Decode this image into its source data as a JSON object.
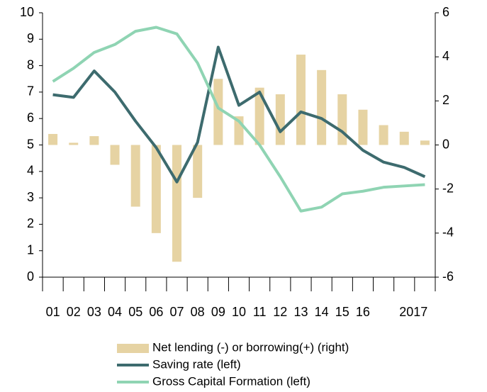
{
  "chart_data": {
    "type": "bar_line",
    "categories": [
      "01",
      "02",
      "03",
      "04",
      "05",
      "06",
      "07",
      "08",
      "09",
      "10",
      "11",
      "12",
      "13",
      "14",
      "15",
      "16",
      null,
      "2017",
      null
    ],
    "ylim": [
      0,
      10
    ],
    "yticks": [
      0,
      1,
      2,
      3,
      4,
      5,
      6,
      7,
      8,
      9,
      10
    ],
    "y2lim": [
      -6,
      6
    ],
    "y2ticks": [
      -6,
      -4,
      -2,
      0,
      2,
      4,
      6
    ],
    "series": [
      {
        "name": "Net lending (-) or borrowing(+) (right)",
        "type": "bar",
        "axis": "y2",
        "color": "#e6d3a3",
        "values": [
          0.5,
          0.1,
          0.4,
          -0.9,
          -2.8,
          -4.0,
          -5.3,
          -2.4,
          3.0,
          1.3,
          2.6,
          2.3,
          4.1,
          3.4,
          2.3,
          1.6,
          0.9,
          0.6,
          0.2
        ]
      },
      {
        "name": "Saving rate (left)",
        "type": "line",
        "color": "#3d6b6e",
        "values": [
          6.9,
          6.8,
          7.8,
          7.0,
          5.9,
          4.9,
          3.6,
          5.1,
          8.7,
          6.5,
          7.0,
          5.5,
          6.25,
          6.0,
          5.5,
          4.8,
          4.35,
          4.15,
          3.8
        ]
      },
      {
        "name": "Gross Capital Formation (left)",
        "type": "line",
        "color": "#8fd4b3",
        "values": [
          7.4,
          7.9,
          8.5,
          8.8,
          9.3,
          9.45,
          9.2,
          8.1,
          6.4,
          5.9,
          5.0,
          3.8,
          2.5,
          2.65,
          3.15,
          3.25,
          3.4,
          3.45,
          3.5
        ]
      }
    ]
  }
}
